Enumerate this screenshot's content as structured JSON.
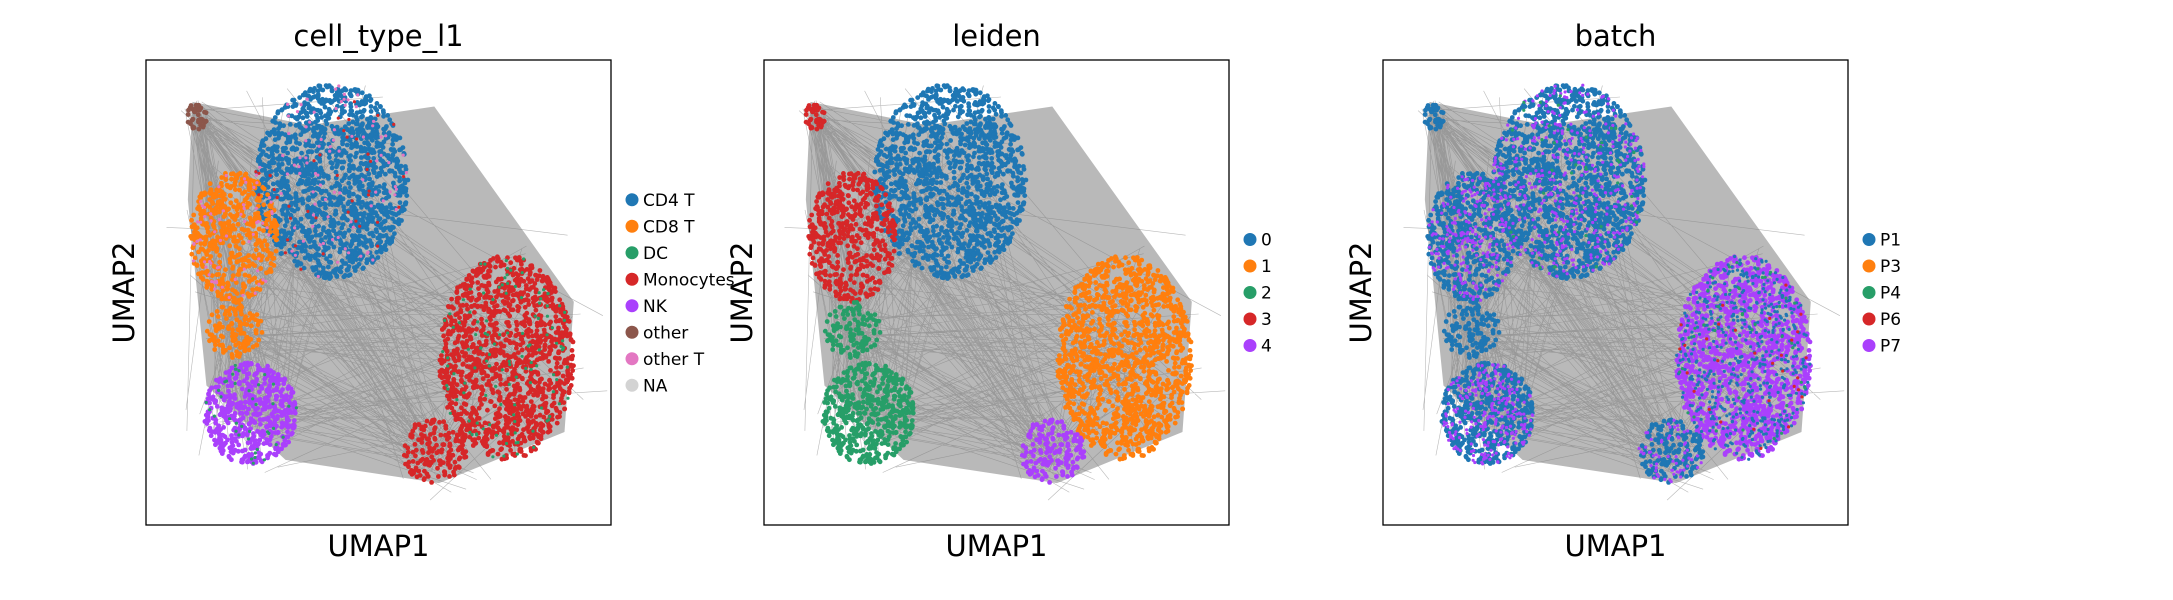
{
  "chart_data": [
    {
      "type": "scatter",
      "title": "cell_type_l1",
      "xlabel": "UMAP1",
      "ylabel": "UMAP2",
      "legend_position": "right",
      "grid": false,
      "ticks": "none",
      "categories": [
        {
          "name": "CD4 T",
          "color": "#1f77b4"
        },
        {
          "name": "CD8 T",
          "color": "#ff7f0e"
        },
        {
          "name": "DC",
          "color": "#279e68"
        },
        {
          "name": "Monocytes",
          "color": "#d62728"
        },
        {
          "name": "NK",
          "color": "#aa40fc"
        },
        {
          "name": "other",
          "color": "#8c564b"
        },
        {
          "name": "other T",
          "color": "#e377c2"
        },
        {
          "name": "NA",
          "color": "#d3d3d3"
        }
      ]
    },
    {
      "type": "scatter",
      "title": "leiden",
      "xlabel": "UMAP1",
      "ylabel": "UMAP2",
      "legend_position": "right",
      "grid": false,
      "ticks": "none",
      "categories": [
        {
          "name": "0",
          "color": "#1f77b4"
        },
        {
          "name": "1",
          "color": "#ff7f0e"
        },
        {
          "name": "2",
          "color": "#279e68"
        },
        {
          "name": "3",
          "color": "#d62728"
        },
        {
          "name": "4",
          "color": "#aa40fc"
        }
      ]
    },
    {
      "type": "scatter",
      "title": "batch",
      "xlabel": "UMAP1",
      "ylabel": "UMAP2",
      "legend_position": "right",
      "grid": false,
      "ticks": "none",
      "categories": [
        {
          "name": "P1",
          "color": "#1f77b4"
        },
        {
          "name": "P3",
          "color": "#ff7f0e"
        },
        {
          "name": "P4",
          "color": "#279e68"
        },
        {
          "name": "P6",
          "color": "#d62728"
        },
        {
          "name": "P7",
          "color": "#aa40fc"
        }
      ]
    }
  ],
  "colors": {
    "edges": "#7f7f7f",
    "frame": "#000000",
    "background": "#ffffff"
  }
}
